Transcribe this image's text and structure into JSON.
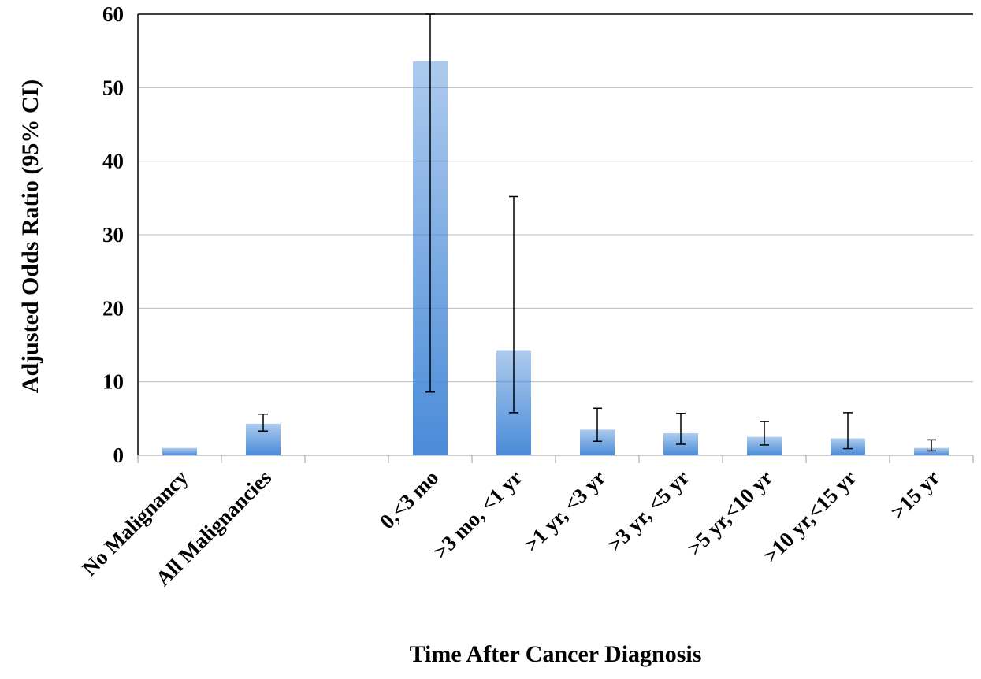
{
  "chart_data": {
    "type": "bar",
    "x_label": "Time After Cancer Diagnosis",
    "y_label": "Adjusted Odds Ratio (95% CI)",
    "categories": [
      "No Malignancy",
      "All Malignancies",
      null,
      "0,<3 mo",
      ">3 mo, <1 yr",
      ">1 yr, <3 yr",
      ">3 yr, <5 yr",
      ">5 yr,<10 yr",
      ">10 yr,<15 yr",
      ">15 yr"
    ],
    "values": [
      1.0,
      4.3,
      null,
      53.6,
      14.3,
      3.5,
      3.0,
      2.5,
      2.3,
      1.0
    ],
    "error_low": [
      null,
      3.3,
      null,
      8.6,
      5.8,
      1.9,
      1.5,
      1.4,
      0.9,
      0.6
    ],
    "error_high": [
      null,
      5.6,
      null,
      60,
      35.2,
      6.4,
      5.7,
      4.6,
      5.8,
      2.1
    ],
    "color": "#4a8bd8",
    "ylim": [
      0,
      60
    ],
    "yticks": [
      0,
      10,
      20,
      30,
      40,
      50,
      60
    ],
    "grid": true
  }
}
